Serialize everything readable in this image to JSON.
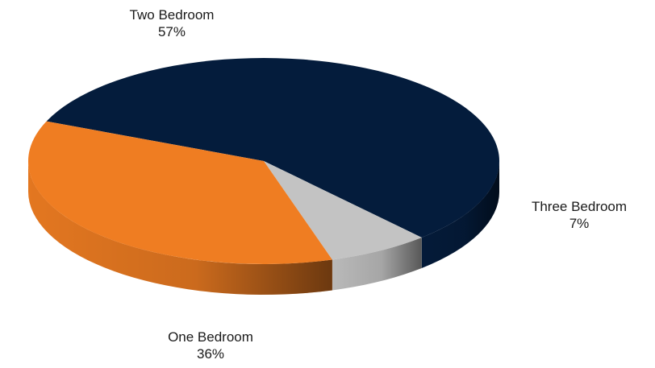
{
  "chart_data": {
    "type": "pie",
    "title": "",
    "slices": [
      {
        "label": "Two Bedroom",
        "value": 57,
        "display": "57%",
        "color": "#041c3c",
        "side_color": "#021227"
      },
      {
        "label": "Three Bedroom",
        "value": 7,
        "display": "7%",
        "color": "#c3c3c3",
        "side_color": "#5e5e5e"
      },
      {
        "label": "One Bedroom",
        "value": 36,
        "display": "36%",
        "color": "#ef7d22",
        "side_color": "#9a4a0d"
      }
    ],
    "legend": "none",
    "labels": "outside"
  }
}
